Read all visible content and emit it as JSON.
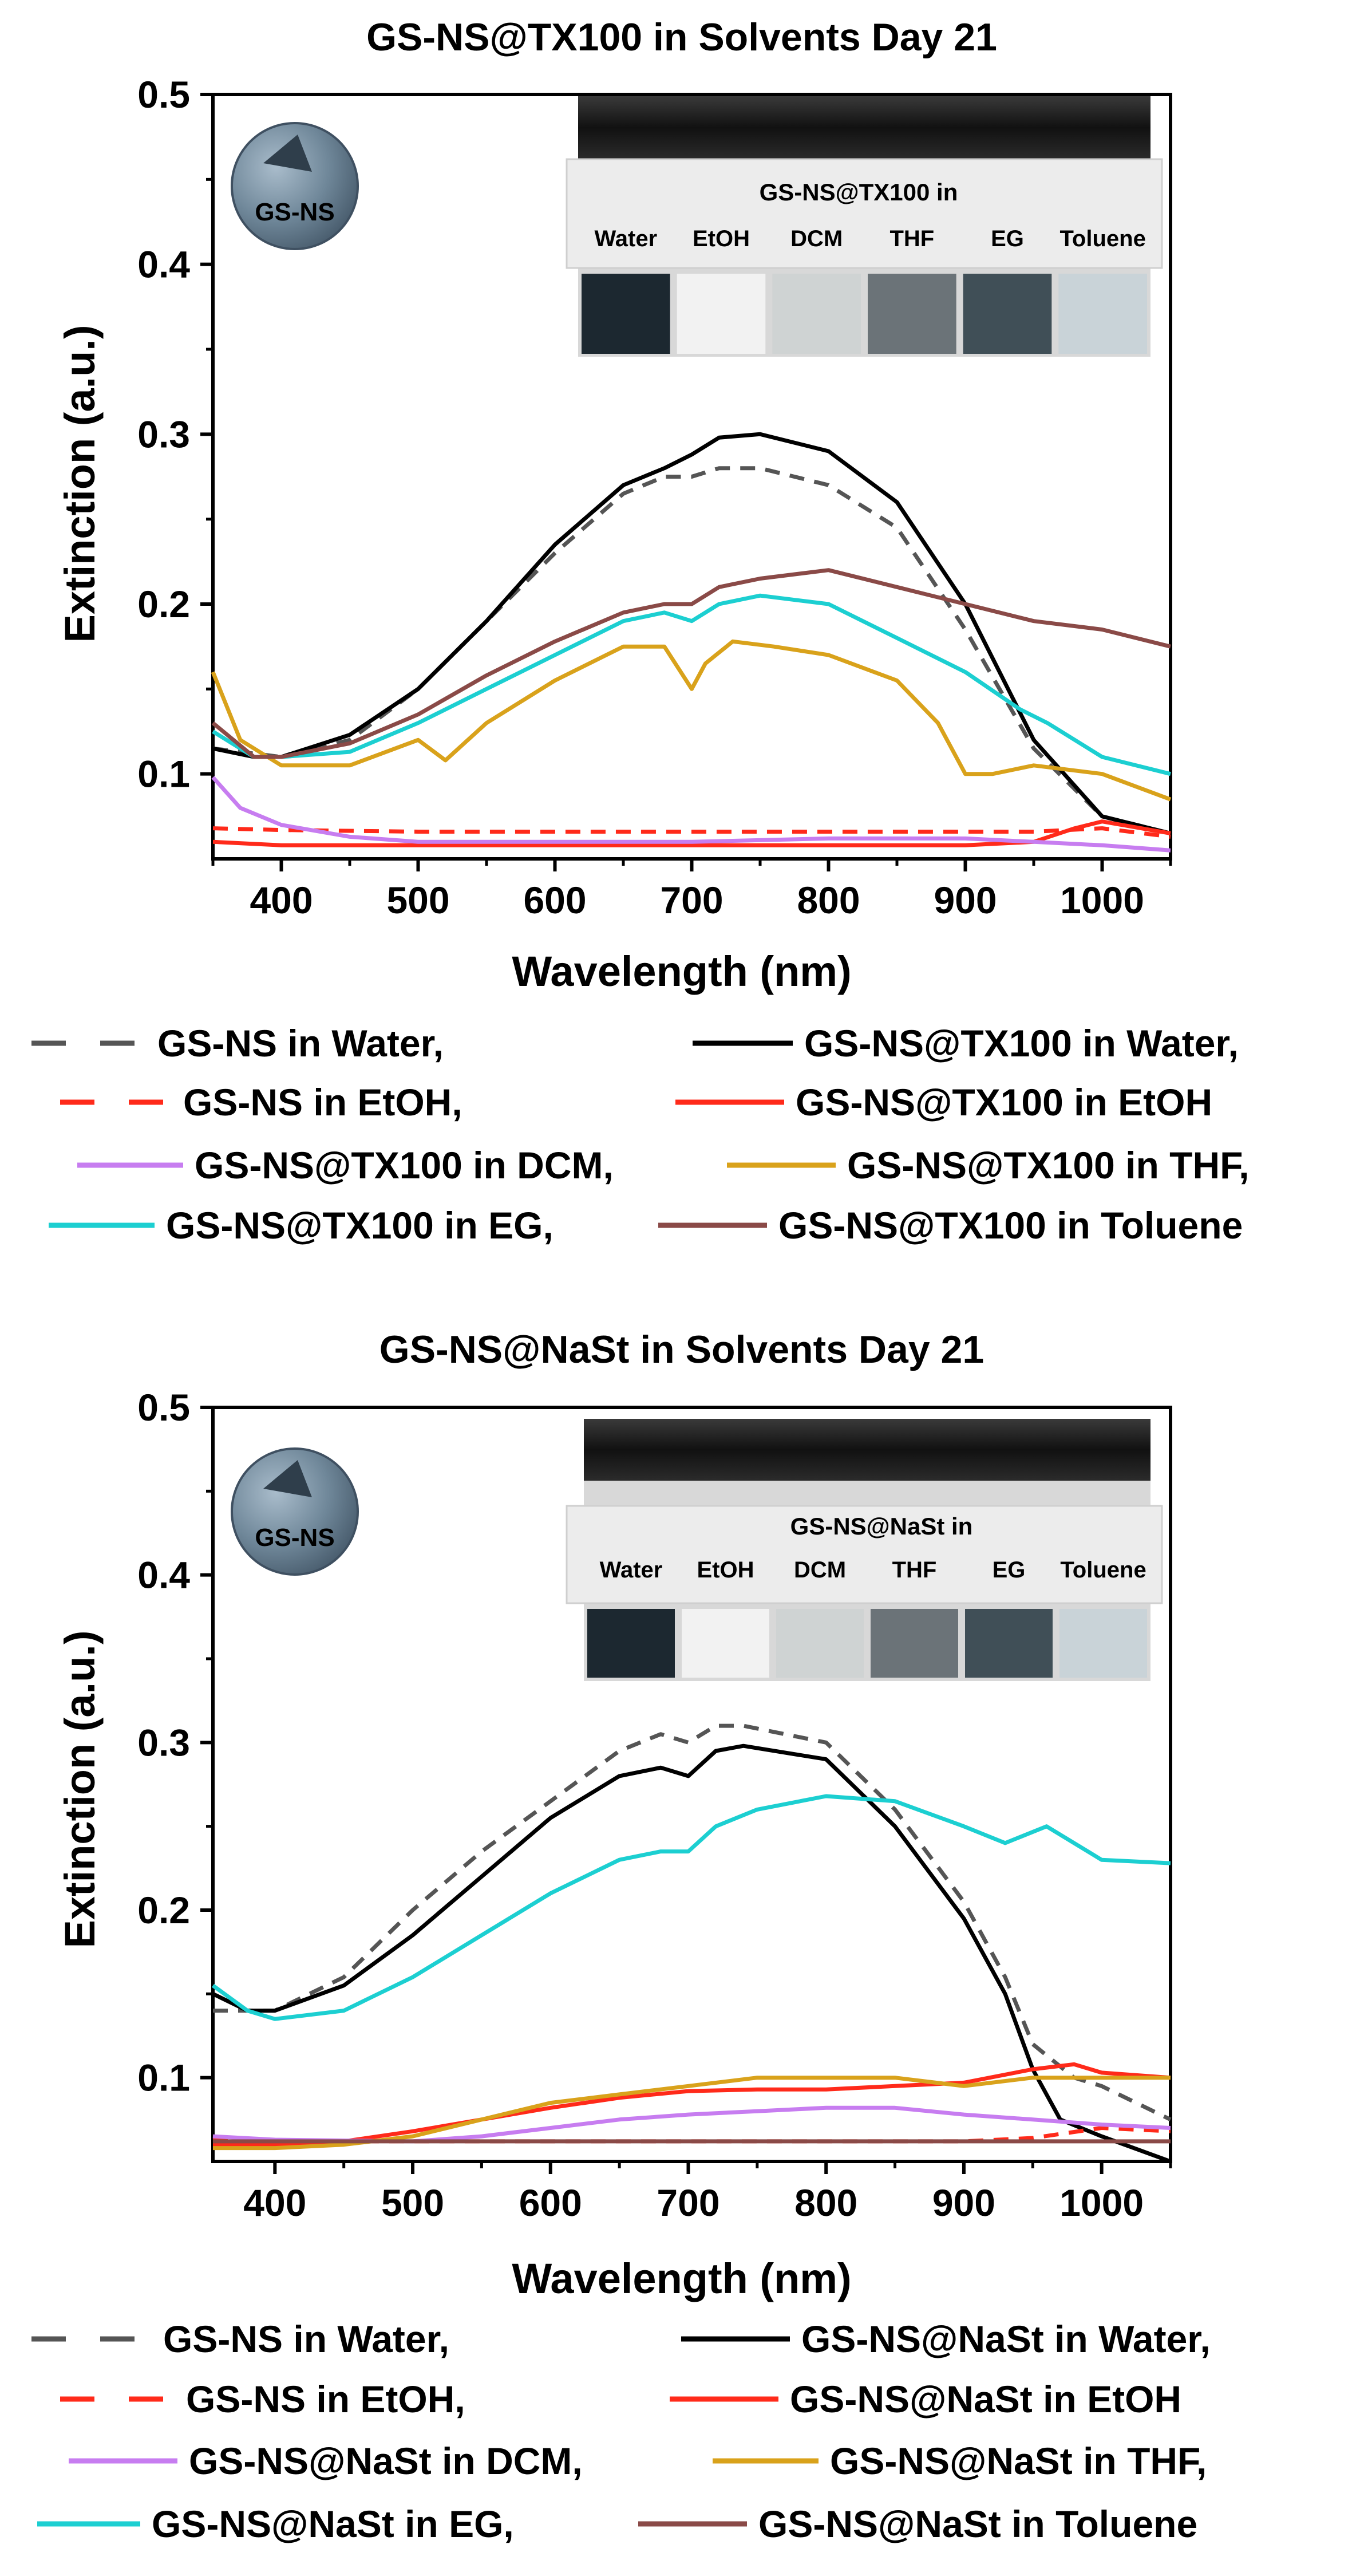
{
  "colors": {
    "gsns_water": "#555555",
    "nast_water": "#000000",
    "gsns_etoh": "#ff2a1a",
    "nast_etoh": "#ff2a1a",
    "dcm": "#c77df0",
    "thf": "#d9a21b",
    "eg": "#1ccfd1",
    "toluene": "#8a4a47"
  },
  "chart_data": [
    {
      "type": "line",
      "title": "GS-NS@TX100 in Solvents Day 21",
      "xlabel": "Wavelength (nm)",
      "ylabel": "Extinction (a.u.)",
      "xlim": [
        350,
        1050
      ],
      "ylim": [
        0.05,
        0.5
      ],
      "xticks": [
        400,
        500,
        600,
        700,
        800,
        900,
        1000
      ],
      "yticks": [
        0.1,
        0.2,
        0.3,
        0.4,
        0.5
      ],
      "xtick_labels": [
        "400",
        "500",
        "600",
        "700",
        "800",
        "900",
        "1000"
      ],
      "ytick_labels": [
        "0.1",
        "0.2",
        "0.3",
        "0.4",
        "0.5"
      ],
      "inset": {
        "badge": "GS-NS",
        "photo_title": "GS-NS@TX100 in",
        "vials": [
          "Water",
          "EtOH",
          "DCM",
          "THF",
          "EG",
          "Toluene"
        ]
      },
      "series": [
        {
          "name": "GS-NS in Water,",
          "color_key": "gsns_water",
          "dashed": true,
          "x": [
            350,
            380,
            400,
            450,
            500,
            550,
            600,
            650,
            680,
            700,
            720,
            750,
            800,
            850,
            900,
            950,
            1000,
            1050
          ],
          "y": [
            0.115,
            0.112,
            0.11,
            0.12,
            0.15,
            0.19,
            0.23,
            0.265,
            0.275,
            0.275,
            0.28,
            0.28,
            0.27,
            0.245,
            0.185,
            0.115,
            0.075,
            0.065
          ]
        },
        {
          "name": "GS-NS@TX100 in Water,",
          "color_key": "nast_water",
          "dashed": false,
          "x": [
            350,
            380,
            400,
            450,
            500,
            550,
            600,
            650,
            680,
            700,
            720,
            750,
            800,
            850,
            900,
            950,
            1000,
            1050
          ],
          "y": [
            0.115,
            0.11,
            0.11,
            0.123,
            0.15,
            0.19,
            0.235,
            0.27,
            0.28,
            0.288,
            0.298,
            0.3,
            0.29,
            0.26,
            0.2,
            0.12,
            0.075,
            0.065
          ]
        },
        {
          "name": "GS-NS in EtOH,",
          "color_key": "gsns_etoh",
          "dashed": true,
          "x": [
            350,
            400,
            500,
            600,
            700,
            800,
            900,
            950,
            1000,
            1050
          ],
          "y": [
            0.068,
            0.067,
            0.066,
            0.066,
            0.066,
            0.066,
            0.066,
            0.066,
            0.068,
            0.063
          ]
        },
        {
          "name": "GS-NS@TX100 in EtOH",
          "color_key": "nast_etoh",
          "dashed": false,
          "x": [
            350,
            400,
            500,
            600,
            700,
            800,
            900,
            950,
            980,
            1000,
            1050
          ],
          "y": [
            0.06,
            0.058,
            0.058,
            0.058,
            0.058,
            0.058,
            0.058,
            0.06,
            0.068,
            0.072,
            0.065
          ]
        },
        {
          "name": "GS-NS@TX100 in DCM,",
          "color_key": "dcm",
          "dashed": false,
          "x": [
            350,
            370,
            400,
            450,
            500,
            600,
            700,
            800,
            900,
            950,
            1000,
            1050
          ],
          "y": [
            0.098,
            0.08,
            0.07,
            0.063,
            0.06,
            0.06,
            0.06,
            0.062,
            0.062,
            0.06,
            0.058,
            0.055
          ]
        },
        {
          "name": "GS-NS@TX100 in THF,",
          "color_key": "thf",
          "dashed": false,
          "x": [
            350,
            370,
            400,
            450,
            500,
            520,
            550,
            600,
            650,
            680,
            700,
            710,
            730,
            760,
            800,
            850,
            880,
            900,
            920,
            950,
            1000,
            1050
          ],
          "y": [
            0.16,
            0.12,
            0.105,
            0.105,
            0.12,
            0.108,
            0.13,
            0.155,
            0.175,
            0.175,
            0.15,
            0.165,
            0.178,
            0.175,
            0.17,
            0.155,
            0.13,
            0.1,
            0.1,
            0.105,
            0.1,
            0.085
          ]
        },
        {
          "name": "GS-NS@TX100 in EG,",
          "color_key": "eg",
          "dashed": false,
          "x": [
            350,
            380,
            400,
            450,
            500,
            550,
            600,
            650,
            680,
            700,
            720,
            750,
            800,
            850,
            900,
            940,
            960,
            1000,
            1050
          ],
          "y": [
            0.125,
            0.11,
            0.11,
            0.113,
            0.13,
            0.15,
            0.17,
            0.19,
            0.195,
            0.19,
            0.2,
            0.205,
            0.2,
            0.18,
            0.16,
            0.138,
            0.13,
            0.11,
            0.1
          ]
        },
        {
          "name": "GS-NS@TX100 in Toluene",
          "color_key": "toluene",
          "dashed": false,
          "x": [
            350,
            380,
            400,
            450,
            500,
            550,
            600,
            650,
            680,
            700,
            720,
            750,
            800,
            850,
            900,
            950,
            1000,
            1050
          ],
          "y": [
            0.13,
            0.11,
            0.11,
            0.118,
            0.135,
            0.158,
            0.178,
            0.195,
            0.2,
            0.2,
            0.21,
            0.215,
            0.22,
            0.21,
            0.2,
            0.19,
            0.185,
            0.175
          ]
        }
      ]
    },
    {
      "type": "line",
      "title": "GS-NS@NaSt in Solvents Day 21",
      "xlabel": "Wavelength (nm)",
      "ylabel": "Extinction (a.u.)",
      "xlim": [
        355,
        1050
      ],
      "ylim": [
        0.05,
        0.5
      ],
      "xticks": [
        400,
        500,
        600,
        700,
        800,
        900,
        1000
      ],
      "yticks": [
        0.1,
        0.2,
        0.3,
        0.4,
        0.5
      ],
      "xtick_labels": [
        "400",
        "500",
        "600",
        "700",
        "800",
        "900",
        "1000"
      ],
      "ytick_labels": [
        "0.1",
        "0.2",
        "0.3",
        "0.4",
        "0.5"
      ],
      "inset": {
        "badge": "GS-NS",
        "photo_title": "GS-NS@NaSt in",
        "vials": [
          "Water",
          "EtOH",
          "DCM",
          "THF",
          "EG",
          "Toluene"
        ]
      },
      "series": [
        {
          "name": "GS-NS in Water,",
          "color_key": "gsns_water",
          "dashed": true,
          "x": [
            355,
            380,
            400,
            450,
            500,
            550,
            600,
            650,
            680,
            700,
            720,
            740,
            800,
            850,
            900,
            930,
            950,
            980,
            1000,
            1050
          ],
          "y": [
            0.14,
            0.14,
            0.14,
            0.16,
            0.2,
            0.235,
            0.265,
            0.295,
            0.305,
            0.3,
            0.31,
            0.31,
            0.3,
            0.26,
            0.205,
            0.16,
            0.12,
            0.1,
            0.095,
            0.075
          ]
        },
        {
          "name": "GS-NS@NaSt in Water,",
          "color_key": "nast_water",
          "dashed": false,
          "x": [
            355,
            380,
            400,
            450,
            500,
            550,
            600,
            650,
            680,
            700,
            720,
            740,
            800,
            850,
            900,
            930,
            950,
            970,
            1000,
            1050
          ],
          "y": [
            0.15,
            0.14,
            0.14,
            0.155,
            0.185,
            0.22,
            0.255,
            0.28,
            0.285,
            0.28,
            0.295,
            0.298,
            0.29,
            0.25,
            0.195,
            0.15,
            0.105,
            0.075,
            0.065,
            0.05
          ]
        },
        {
          "name": "GS-NS in EtOH,",
          "color_key": "gsns_etoh",
          "dashed": true,
          "x": [
            355,
            400,
            500,
            600,
            700,
            800,
            900,
            950,
            1000,
            1050
          ],
          "y": [
            0.063,
            0.062,
            0.062,
            0.062,
            0.062,
            0.062,
            0.062,
            0.064,
            0.07,
            0.068
          ]
        },
        {
          "name": "GS-NS@NaSt in EtOH",
          "color_key": "nast_etoh",
          "dashed": false,
          "x": [
            355,
            400,
            450,
            500,
            550,
            600,
            650,
            700,
            750,
            800,
            850,
            900,
            950,
            980,
            1000,
            1050
          ],
          "y": [
            0.06,
            0.06,
            0.062,
            0.068,
            0.075,
            0.082,
            0.088,
            0.092,
            0.093,
            0.093,
            0.095,
            0.097,
            0.105,
            0.108,
            0.103,
            0.1
          ]
        },
        {
          "name": "GS-NS@NaSt in DCM,",
          "color_key": "dcm",
          "dashed": false,
          "x": [
            355,
            400,
            500,
            550,
            600,
            650,
            700,
            750,
            800,
            850,
            900,
            950,
            1000,
            1050
          ],
          "y": [
            0.065,
            0.063,
            0.062,
            0.065,
            0.07,
            0.075,
            0.078,
            0.08,
            0.082,
            0.082,
            0.078,
            0.075,
            0.072,
            0.07
          ]
        },
        {
          "name": "GS-NS@NaSt in THF,",
          "color_key": "thf",
          "dashed": false,
          "x": [
            355,
            400,
            450,
            500,
            550,
            600,
            650,
            700,
            750,
            800,
            850,
            900,
            950,
            1000,
            1050
          ],
          "y": [
            0.058,
            0.058,
            0.06,
            0.065,
            0.075,
            0.085,
            0.09,
            0.095,
            0.1,
            0.1,
            0.1,
            0.095,
            0.1,
            0.1,
            0.1
          ]
        },
        {
          "name": "GS-NS@NaSt in EG,",
          "color_key": "eg",
          "dashed": false,
          "x": [
            355,
            380,
            400,
            450,
            500,
            550,
            600,
            650,
            680,
            700,
            720,
            750,
            800,
            850,
            900,
            930,
            960,
            1000,
            1050
          ],
          "y": [
            0.155,
            0.14,
            0.135,
            0.14,
            0.16,
            0.185,
            0.21,
            0.23,
            0.235,
            0.235,
            0.25,
            0.26,
            0.268,
            0.265,
            0.25,
            0.24,
            0.25,
            0.23,
            0.228
          ]
        },
        {
          "name": "GS-NS@NaSt in Toluene",
          "color_key": "toluene",
          "dashed": false,
          "x": [
            355,
            400,
            500,
            600,
            700,
            800,
            900,
            1000,
            1050
          ],
          "y": [
            0.062,
            0.062,
            0.062,
            0.062,
            0.062,
            0.062,
            0.062,
            0.062,
            0.062
          ]
        }
      ]
    }
  ]
}
